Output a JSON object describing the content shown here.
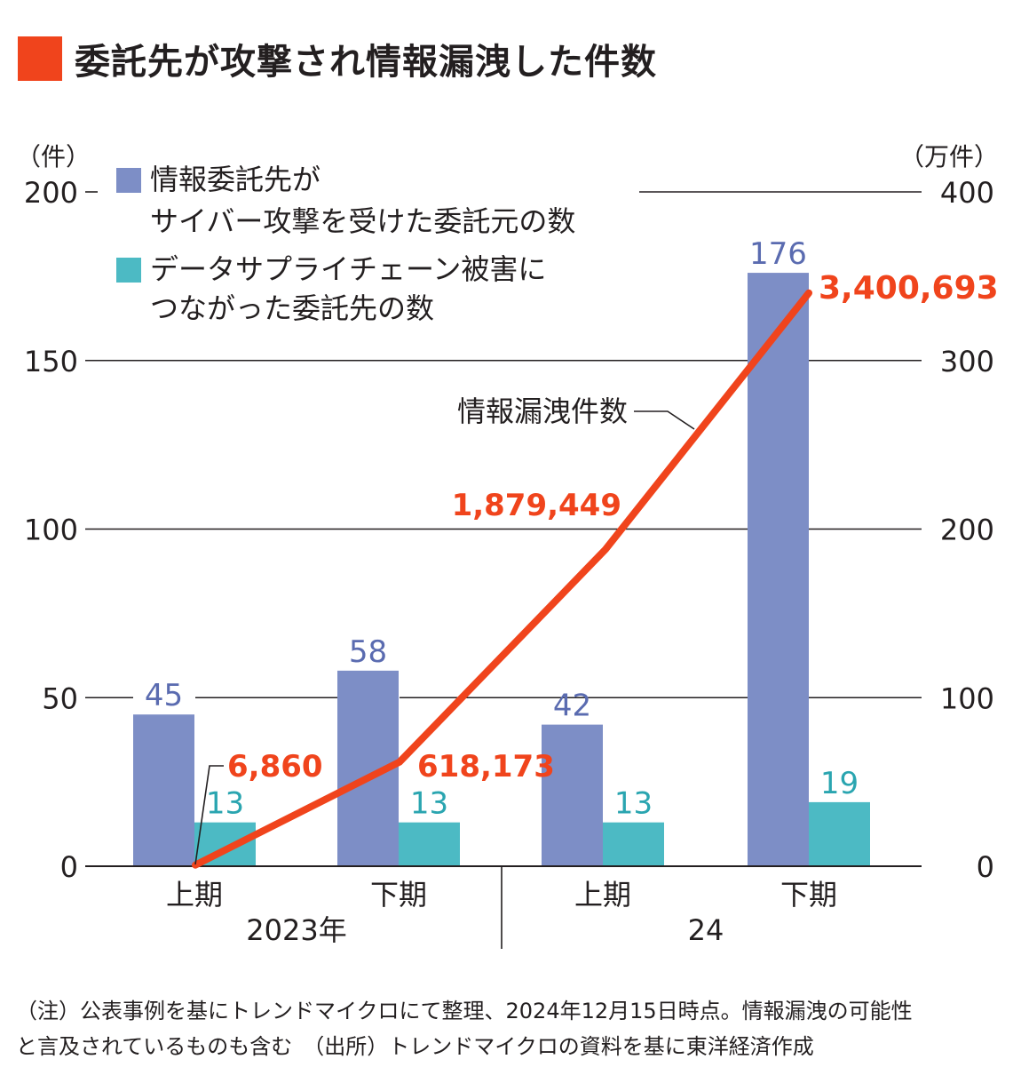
{
  "title": "委託先が攻撃され情報漏洩した件数",
  "colors": {
    "accent": "#f0441c",
    "bar_primary": "#7d8ec6",
    "bar_secondary": "#4cbac4",
    "text": "#231f20"
  },
  "chart_data": {
    "type": "bar",
    "categories": [
      "上期",
      "下期",
      "上期",
      "下期"
    ],
    "groups": [
      {
        "label": "2023年",
        "categories": [
          "上期",
          "下期"
        ]
      },
      {
        "label": "24",
        "categories": [
          "上期",
          "下期"
        ]
      }
    ],
    "series": [
      {
        "name": "情報委託先がサイバー攻撃を受けた委託元の数",
        "legend_lines": [
          "情報委託先が",
          "サイバー攻撃を受けた委託元の数"
        ],
        "values": [
          45,
          58,
          42,
          176
        ],
        "labels": [
          "45",
          "58",
          "42",
          "176"
        ],
        "axis": "left"
      },
      {
        "name": "データサプライチェーン被害につながった委託先の数",
        "legend_lines": [
          "データサプライチェーン被害に",
          "つながった委託先の数"
        ],
        "values": [
          13,
          13,
          13,
          19
        ],
        "labels": [
          "13",
          "13",
          "13",
          "19"
        ],
        "axis": "left"
      }
    ],
    "line_series": {
      "name": "情報漏洩件数",
      "type": "line",
      "axis": "right",
      "values": [
        6860,
        618173,
        1879449,
        3400693
      ],
      "labels": [
        "6,860",
        "618,173",
        "1,879,449",
        "3,400,693"
      ]
    },
    "left_axis": {
      "unit": "（件）",
      "ticks": [
        "0",
        "50",
        "100",
        "150",
        "200"
      ],
      "ylim": [
        0,
        200
      ]
    },
    "right_axis": {
      "unit": "（万件）",
      "ticks": [
        "0",
        "100",
        "200",
        "300",
        "400"
      ],
      "ylim": [
        0,
        4000000
      ]
    },
    "grid": true
  },
  "note": {
    "line1": "（注）公表事例を基にトレンドマイクロにて整理、2024年12月15日時点。情報漏洩の可能性",
    "line2": "と言及されているものも含む　（出所）トレンドマイクロの資料を基に東洋経済作成"
  }
}
